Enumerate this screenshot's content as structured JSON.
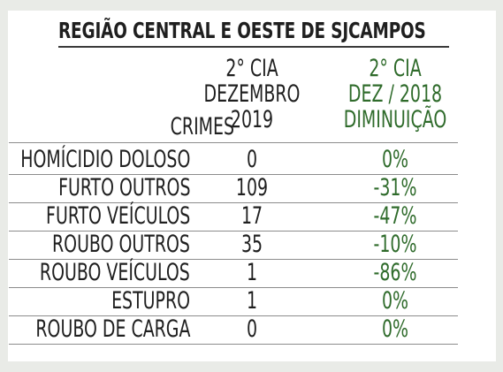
{
  "title": "REGIÃO CENTRAL E OESTE DE SJCAMPOS",
  "headers": {
    "crimes": "CRIMES",
    "col1": [
      "2° CIA",
      "DEZEMBRO",
      "2019"
    ],
    "col2": [
      "2° CIA",
      "DEZ / 2018",
      "DIMINUIÇÃO"
    ]
  },
  "colors": {
    "green": "#2f6b2b",
    "text": "#1f1f1f",
    "background": "#e9ebe7"
  },
  "rows": [
    {
      "crime": "HOMÍCIDIO DOLOSO",
      "value": "0",
      "change": "0%"
    },
    {
      "crime": "FURTO OUTROS",
      "value": "109",
      "change": "-31%"
    },
    {
      "crime": "FURTO VEÍCULOS",
      "value": "17",
      "change": "-47%"
    },
    {
      "crime": "ROUBO OUTROS",
      "value": "35",
      "change": "-10%"
    },
    {
      "crime": "ROUBO VEÍCULOS",
      "value": "1",
      "change": "-86%"
    },
    {
      "crime": "ESTUPRO",
      "value": "1",
      "change": "0%"
    },
    {
      "crime": "ROUBO DE CARGA",
      "value": "0",
      "change": "0%"
    }
  ]
}
